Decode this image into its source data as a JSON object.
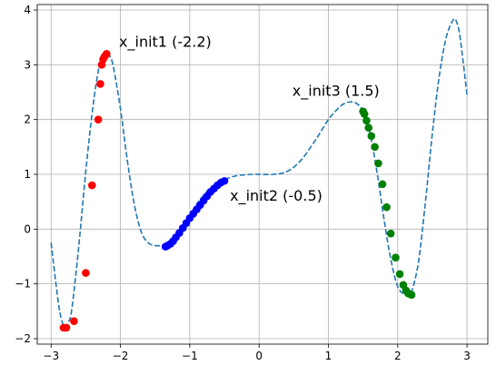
{
  "chart_data": {
    "type": "scatter",
    "title": "",
    "xlabel": "",
    "ylabel": "",
    "xlim": [
      -3.2,
      3.3
    ],
    "ylim": [
      -2.1,
      4.1
    ],
    "xticks": [
      -3,
      -2,
      -1,
      0,
      1,
      2,
      3
    ],
    "yticks": [
      -2,
      -1,
      0,
      1,
      2,
      3,
      4
    ],
    "grid": true,
    "curve": {
      "style": "dashed",
      "color": "#1f77b4",
      "x": [
        -3.0,
        -2.9,
        -2.85,
        -2.8,
        -2.75,
        -2.7,
        -2.6,
        -2.5,
        -2.4,
        -2.3,
        -2.2,
        -2.15,
        -2.1,
        -2.0,
        -1.9,
        -1.8,
        -1.7,
        -1.6,
        -1.5,
        -1.4,
        -1.3,
        -1.2,
        -1.1,
        -1.0,
        -0.9,
        -0.8,
        -0.7,
        -0.6,
        -0.5,
        -0.4,
        -0.3,
        -0.2,
        -0.1,
        0.0,
        0.2,
        0.4,
        0.6,
        0.8,
        0.9,
        1.0,
        1.1,
        1.2,
        1.3,
        1.4,
        1.5,
        1.6,
        1.7,
        1.8,
        1.9,
        2.0,
        2.1,
        2.15,
        2.2,
        2.3,
        2.4,
        2.5,
        2.6,
        2.7,
        2.8,
        2.85,
        2.9,
        3.0
      ],
      "y": [
        -0.25,
        -1.3,
        -1.65,
        -1.8,
        -1.7,
        -1.45,
        -0.3,
        1.05,
        2.2,
        3.0,
        3.2,
        3.15,
        2.95,
        2.2,
        1.25,
        0.45,
        -0.05,
        -0.25,
        -0.3,
        -0.3,
        -0.28,
        -0.15,
        0.05,
        0.25,
        0.45,
        0.62,
        0.75,
        0.83,
        0.9,
        0.95,
        0.98,
        0.99,
        1.0,
        1.0,
        1.0,
        1.05,
        1.25,
        1.6,
        1.8,
        2.0,
        2.15,
        2.27,
        2.32,
        2.3,
        2.15,
        1.75,
        1.05,
        0.2,
        -0.55,
        -1.05,
        -1.2,
        -1.22,
        -1.15,
        -0.6,
        0.5,
        1.75,
        2.8,
        3.5,
        3.82,
        3.78,
        3.5,
        2.45
      ]
    },
    "series": [
      {
        "color": "#ff0000",
        "x": [
          -2.2,
          -2.21,
          -2.23,
          -2.25,
          -2.27,
          -2.29,
          -2.32,
          -2.41,
          -2.5,
          -2.67,
          -2.78,
          -2.82
        ],
        "y": [
          3.2,
          3.18,
          3.15,
          3.1,
          3.0,
          2.65,
          2.0,
          0.8,
          -0.8,
          -1.68,
          -1.8,
          -1.8
        ]
      },
      {
        "color": "#0000ff",
        "x": [
          -0.5,
          -0.55,
          -0.6,
          -0.65,
          -0.7,
          -0.75,
          -0.8,
          -0.85,
          -0.9,
          -0.95,
          -1.0,
          -1.05,
          -1.1,
          -1.15,
          -1.2,
          -1.24,
          -1.28,
          -1.32,
          -1.35
        ],
        "y": [
          0.88,
          0.85,
          0.8,
          0.74,
          0.68,
          0.6,
          0.52,
          0.44,
          0.36,
          0.28,
          0.2,
          0.11,
          0.02,
          -0.07,
          -0.15,
          -0.22,
          -0.27,
          -0.3,
          -0.32
        ]
      },
      {
        "color": "#008000",
        "x": [
          1.5,
          1.52,
          1.55,
          1.58,
          1.62,
          1.67,
          1.72,
          1.78,
          1.84,
          1.9,
          1.97,
          2.03,
          2.08,
          2.12,
          2.15,
          2.18,
          2.2
        ],
        "y": [
          2.15,
          2.1,
          1.98,
          1.85,
          1.7,
          1.5,
          1.2,
          0.82,
          0.4,
          -0.08,
          -0.52,
          -0.82,
          -1.02,
          -1.12,
          -1.17,
          -1.19,
          -1.2
        ]
      }
    ],
    "annotations": [
      {
        "text": "x_init1 (-2.2)",
        "x": -2.02,
        "y": 3.33
      },
      {
        "text": "x_init2 (-0.5)",
        "x": -0.42,
        "y": 0.52
      },
      {
        "text": "x_init3 (1.5)",
        "x": 0.48,
        "y": 2.43
      }
    ]
  }
}
